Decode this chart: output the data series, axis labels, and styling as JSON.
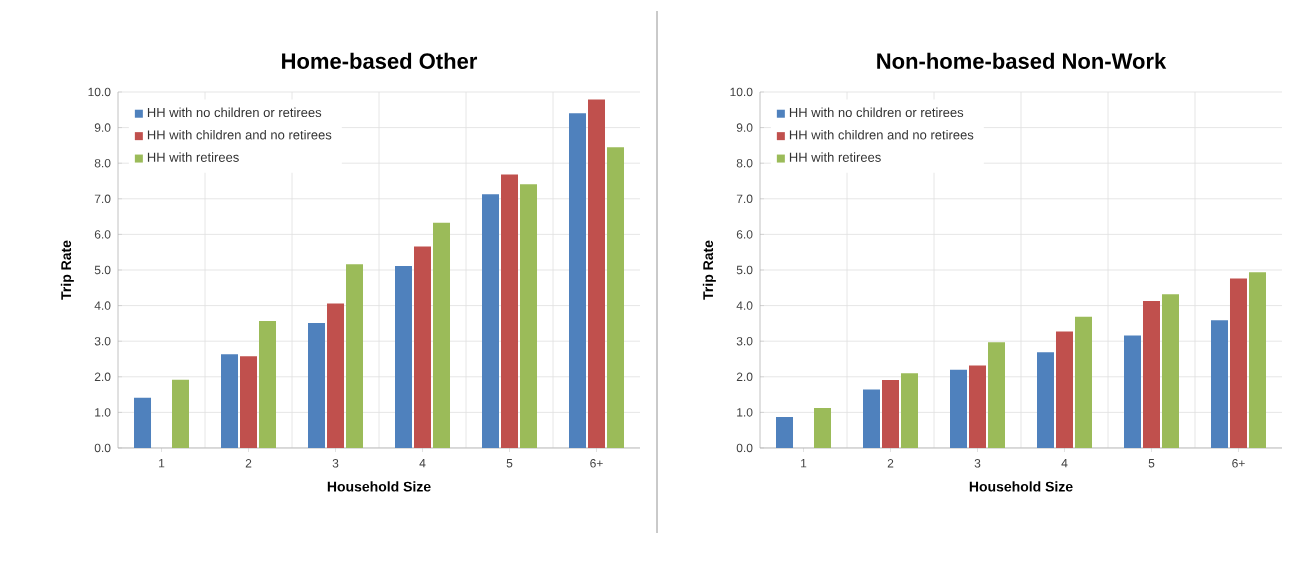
{
  "chart_data": [
    {
      "type": "bar",
      "title": "Home-based Other",
      "xlabel": "Household Size",
      "ylabel": "Trip Rate",
      "categories": [
        "1",
        "2",
        "3",
        "4",
        "5",
        "6+"
      ],
      "series": [
        {
          "name": "HH with no children or retirees",
          "color": "#4f81bd",
          "values": [
            1.41,
            2.63,
            3.51,
            5.11,
            7.13,
            9.4
          ]
        },
        {
          "name": "HH with children and no retirees",
          "color": "#c0504d",
          "values": [
            null,
            2.58,
            4.06,
            5.66,
            7.68,
            9.79
          ]
        },
        {
          "name": "HH with retirees",
          "color": "#9bbb59",
          "values": [
            1.92,
            3.57,
            5.16,
            6.33,
            7.41,
            8.45
          ]
        }
      ],
      "ylim": [
        0,
        10
      ],
      "yticks": [
        {
          "value": 0,
          "label": "0.0"
        },
        {
          "value": 1,
          "label": "1.0"
        },
        {
          "value": 2,
          "label": "2.0"
        },
        {
          "value": 3,
          "label": "3.0"
        },
        {
          "value": 4,
          "label": "4.0"
        },
        {
          "value": 5,
          "label": "5.0"
        },
        {
          "value": 6,
          "label": "6.0"
        },
        {
          "value": 7,
          "label": "7.0"
        },
        {
          "value": 8,
          "label": "8.0"
        },
        {
          "value": 9,
          "label": "9.0"
        },
        {
          "value": 10,
          "label": "10.0"
        }
      ],
      "grid": true,
      "legend": "top left"
    },
    {
      "type": "bar",
      "title": "Non-home-based Non-Work",
      "xlabel": "Household Size",
      "ylabel": "Trip Rate",
      "categories": [
        "1",
        "2",
        "3",
        "4",
        "5",
        "6+"
      ],
      "series": [
        {
          "name": "HH with no children or retirees",
          "color": "#4f81bd",
          "values": [
            0.87,
            1.64,
            2.2,
            2.69,
            3.16,
            3.59
          ]
        },
        {
          "name": "HH with children and no retirees",
          "color": "#c0504d",
          "values": [
            null,
            1.91,
            2.32,
            3.27,
            4.13,
            4.76
          ]
        },
        {
          "name": "HH with retirees",
          "color": "#9bbb59",
          "values": [
            1.12,
            2.1,
            2.97,
            3.69,
            4.32,
            4.94
          ]
        }
      ],
      "ylim": [
        0,
        10
      ],
      "yticks": [
        {
          "value": 0,
          "label": "0.0"
        },
        {
          "value": 1,
          "label": "1.0"
        },
        {
          "value": 2,
          "label": "2.0"
        },
        {
          "value": 3,
          "label": "3.0"
        },
        {
          "value": 4,
          "label": "4.0"
        },
        {
          "value": 5,
          "label": "5.0"
        },
        {
          "value": 6,
          "label": "6.0"
        },
        {
          "value": 7,
          "label": "7.0"
        },
        {
          "value": 8,
          "label": "8.0"
        },
        {
          "value": 9,
          "label": "9.0"
        },
        {
          "value": 10,
          "label": "10.0"
        }
      ],
      "grid": true,
      "legend": "top left"
    }
  ]
}
